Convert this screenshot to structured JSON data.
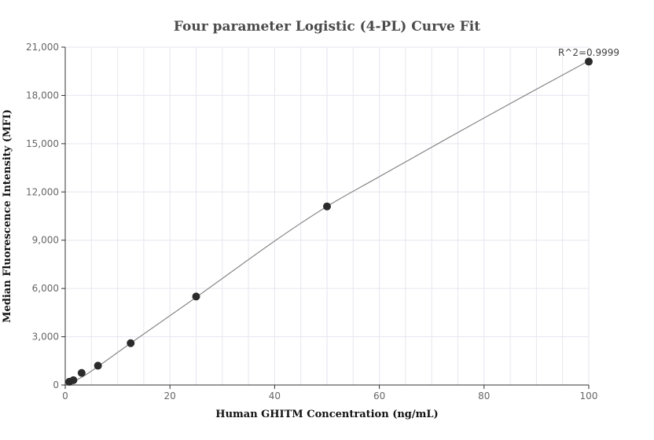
{
  "chart_data": {
    "type": "scatter",
    "title": "Four parameter Logistic (4-PL) Curve Fit",
    "xlabel": "Human GHITM Concentration (ng/mL)",
    "ylabel": "Median Fluorescence Intensity (MFI)",
    "xlim": [
      0,
      100
    ],
    "ylim": [
      0,
      21000
    ],
    "x_ticks": [
      0,
      20,
      40,
      60,
      80,
      100
    ],
    "y_ticks": [
      0,
      3000,
      6000,
      9000,
      12000,
      15000,
      18000,
      21000
    ],
    "x_tick_labels": [
      "0",
      "20",
      "40",
      "60",
      "80",
      "100"
    ],
    "y_tick_labels": [
      "0",
      "3,000",
      "6,000",
      "9,000",
      "12,000",
      "15,000",
      "18,000",
      "21,000"
    ],
    "grid": true,
    "series": [
      {
        "x": [
          0.78,
          1.56,
          3.13,
          6.25,
          12.5,
          25,
          50,
          100
        ],
        "y": [
          200,
          300,
          750,
          1200,
          2600,
          5500,
          11100,
          20100
        ]
      }
    ],
    "fit_curve": {
      "x": [
        0.78,
        3.13,
        6.25,
        12.5,
        25,
        40,
        50,
        60,
        80,
        100
      ],
      "y": [
        100,
        480,
        1150,
        2600,
        5450,
        8950,
        11100,
        12950,
        16600,
        20150
      ]
    },
    "annotation": "R^2=0.9999",
    "colors": {
      "point": "#2b2b2b",
      "curve": "#888888",
      "grid": "#e6e6ef",
      "axis": "#333333"
    }
  }
}
